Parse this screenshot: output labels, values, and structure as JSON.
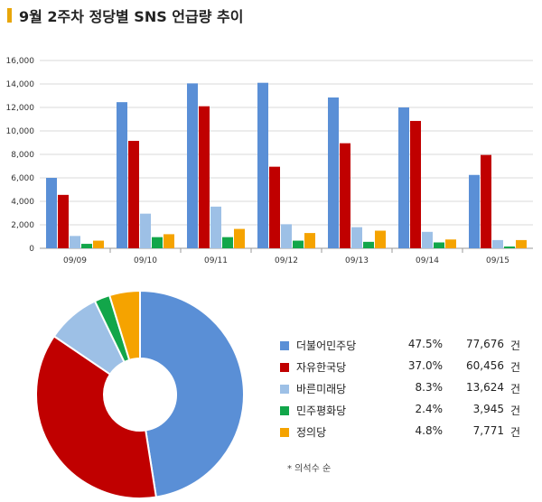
{
  "title": "9월 2주차 정당별 SNS 언급량 추이",
  "colors": {
    "accent": "#e8a60a",
    "series": [
      "#5a8fd6",
      "#c00000",
      "#9dc0e6",
      "#12a64a",
      "#f5a300"
    ]
  },
  "chart_data": [
    {
      "type": "bar",
      "categories": [
        "09/09",
        "09/10",
        "09/11",
        "09/12",
        "09/13",
        "09/14",
        "09/15"
      ],
      "ylim": [
        0,
        16000
      ],
      "yticks": [
        "0",
        "2,000",
        "4,000",
        "6,000",
        "8,000",
        "10,000",
        "12,000",
        "14,000",
        "16,000"
      ],
      "ytick_values": [
        0,
        2000,
        4000,
        6000,
        8000,
        10000,
        12000,
        14000,
        16000
      ],
      "grid": true,
      "series": [
        {
          "name": "더불어민주당",
          "values": [
            6000,
            12450,
            14050,
            14100,
            12850,
            12000,
            6250
          ]
        },
        {
          "name": "자유한국당",
          "values": [
            4550,
            9150,
            12100,
            6950,
            8950,
            10850,
            7950
          ]
        },
        {
          "name": "바른미래당",
          "values": [
            1050,
            2950,
            3550,
            2050,
            1800,
            1400,
            700
          ]
        },
        {
          "name": "민주평화당",
          "values": [
            380,
            950,
            950,
            650,
            550,
            500,
            150
          ]
        },
        {
          "name": "정의당",
          "values": [
            650,
            1200,
            1650,
            1300,
            1500,
            750,
            700
          ]
        }
      ]
    },
    {
      "type": "pie",
      "labels": [
        "더불어민주당",
        "자유한국당",
        "바른미래당",
        "민주평화당",
        "정의당"
      ],
      "values": [
        77676,
        60456,
        13624,
        3945,
        7771
      ],
      "percentages": [
        "47.5%",
        "37.0%",
        "8.3%",
        "2.4%",
        "4.8%"
      ],
      "counts": [
        "77,676",
        "60,456",
        "13,624",
        "3,945",
        "7,771"
      ],
      "unit": "건",
      "legend_position": "right"
    }
  ],
  "footnote": "* 의석수 순"
}
